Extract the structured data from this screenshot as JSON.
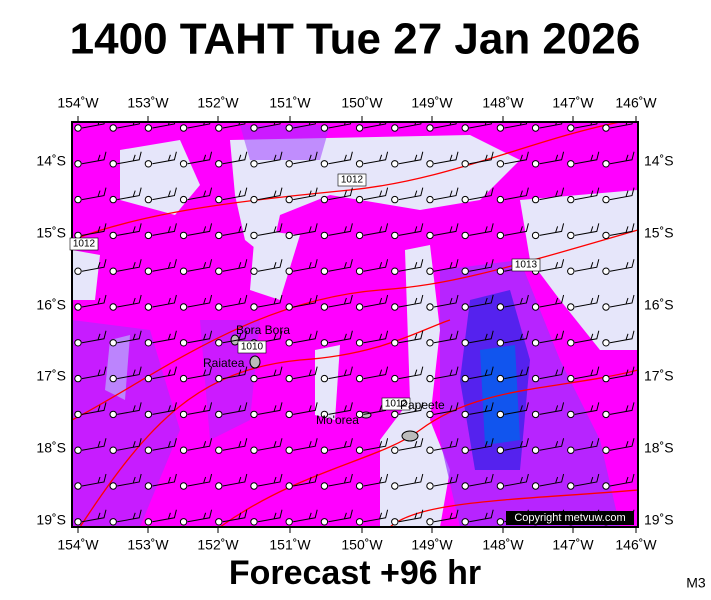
{
  "header": {
    "title": "1400 TAHT Tue 27 Jan 2026"
  },
  "map": {
    "longitude_labels": [
      "154˚W",
      "153˚W",
      "152˚W",
      "151˚W",
      "150˚W",
      "149˚W",
      "148˚W",
      "147˚W",
      "146˚W"
    ],
    "latitude_labels": [
      "14˚S",
      "15˚S",
      "16˚S",
      "17˚S",
      "18˚S",
      "19˚S"
    ],
    "isobar_labels": [
      "1012",
      "1012",
      "1013",
      "1010",
      "1012"
    ],
    "places": [
      "Bora Bora",
      "Raiatea",
      "Mo'orea",
      "Papeete"
    ],
    "copyright": "Copyright metvuw.com"
  },
  "footer": {
    "forecast": "Forecast +96 hr",
    "model": "M3"
  }
}
